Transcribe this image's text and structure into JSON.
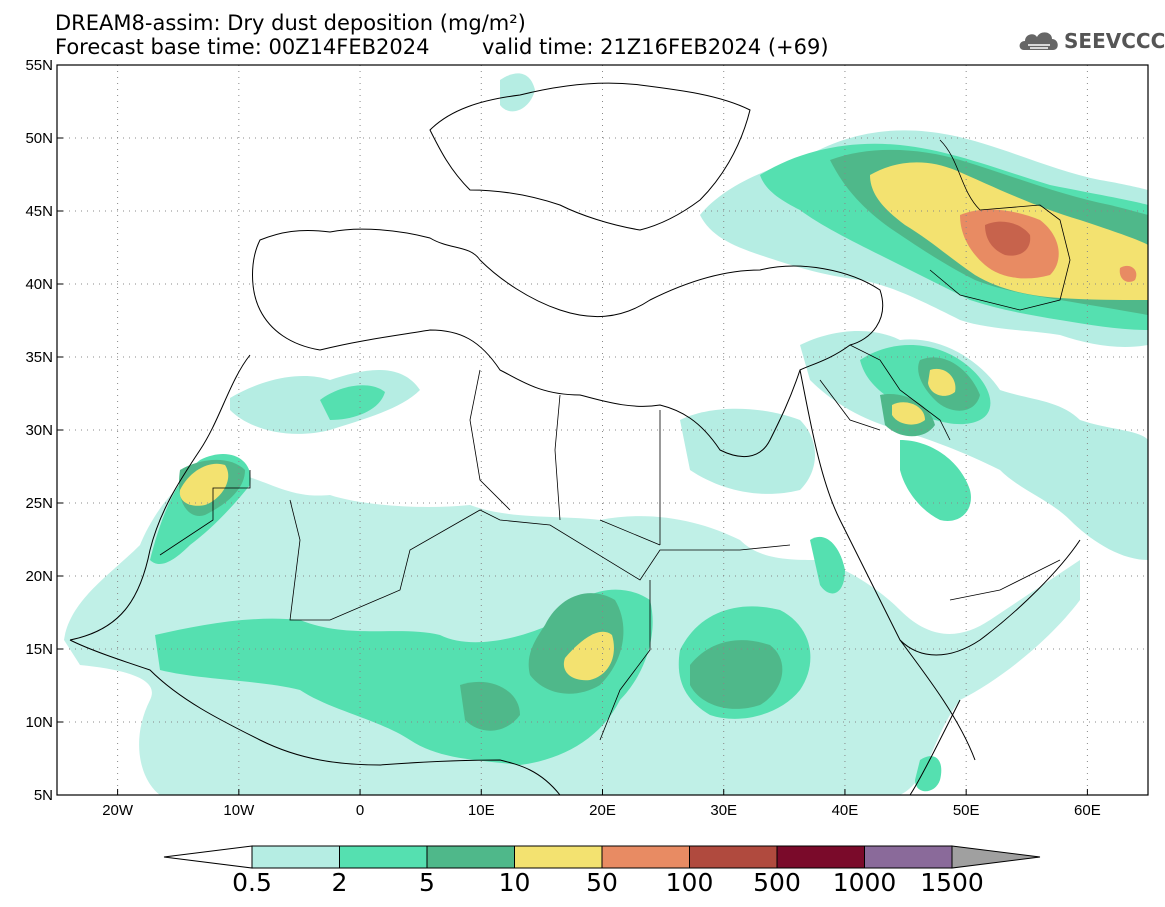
{
  "header": {
    "title_line1": "DREAM8-assim: Dry dust deposition (mg/m²)",
    "title_line2": "Forecast base time: 00Z14FEB2024",
    "valid_time": "valid time: 21Z16FEB2024 (+69)",
    "logo_text": "SEEVCCC",
    "logo_icon": "cloud-logo-icon"
  },
  "map": {
    "lon_range": [
      -25,
      65
    ],
    "lat_range": [
      5,
      55
    ],
    "lon_ticks": [
      "20W",
      "10W",
      "0",
      "10E",
      "20E",
      "30E",
      "40E",
      "50E",
      "60E"
    ],
    "lat_ticks": [
      "55N",
      "50N",
      "45N",
      "40N",
      "35N",
      "30N",
      "25N",
      "20N",
      "15N",
      "10N",
      "5N"
    ],
    "grid": "dotted"
  },
  "colorbar": {
    "labels": [
      "0.5",
      "2",
      "5",
      "10",
      "50",
      "100",
      "500",
      "1000",
      "1500"
    ],
    "colors": [
      "#b5ede3",
      "#55e0b0",
      "#4fb88a",
      "#f3e270",
      "#e88b63",
      "#b04a3e",
      "#7a0a2a",
      "#8a6a9a"
    ],
    "under_color": "#ffffff",
    "over_color": "#a0a0a0"
  },
  "chart_data": {
    "type": "heatmap",
    "title": "DREAM8-assim: Dry dust deposition (mg/m²)",
    "units": "mg/m²",
    "levels": [
      0.5,
      2,
      5,
      10,
      50,
      100,
      500,
      1000,
      1500
    ],
    "x_ticks": [
      "20W",
      "10W",
      "0",
      "10E",
      "20E",
      "30E",
      "40E",
      "50E",
      "60E"
    ],
    "y_ticks": [
      "55N",
      "50N",
      "45N",
      "40N",
      "35N",
      "30N",
      "25N",
      "20N",
      "15N",
      "10N",
      "5N"
    ],
    "xlim": [
      -25,
      65
    ],
    "ylim": [
      5,
      55
    ],
    "grid": true
  }
}
